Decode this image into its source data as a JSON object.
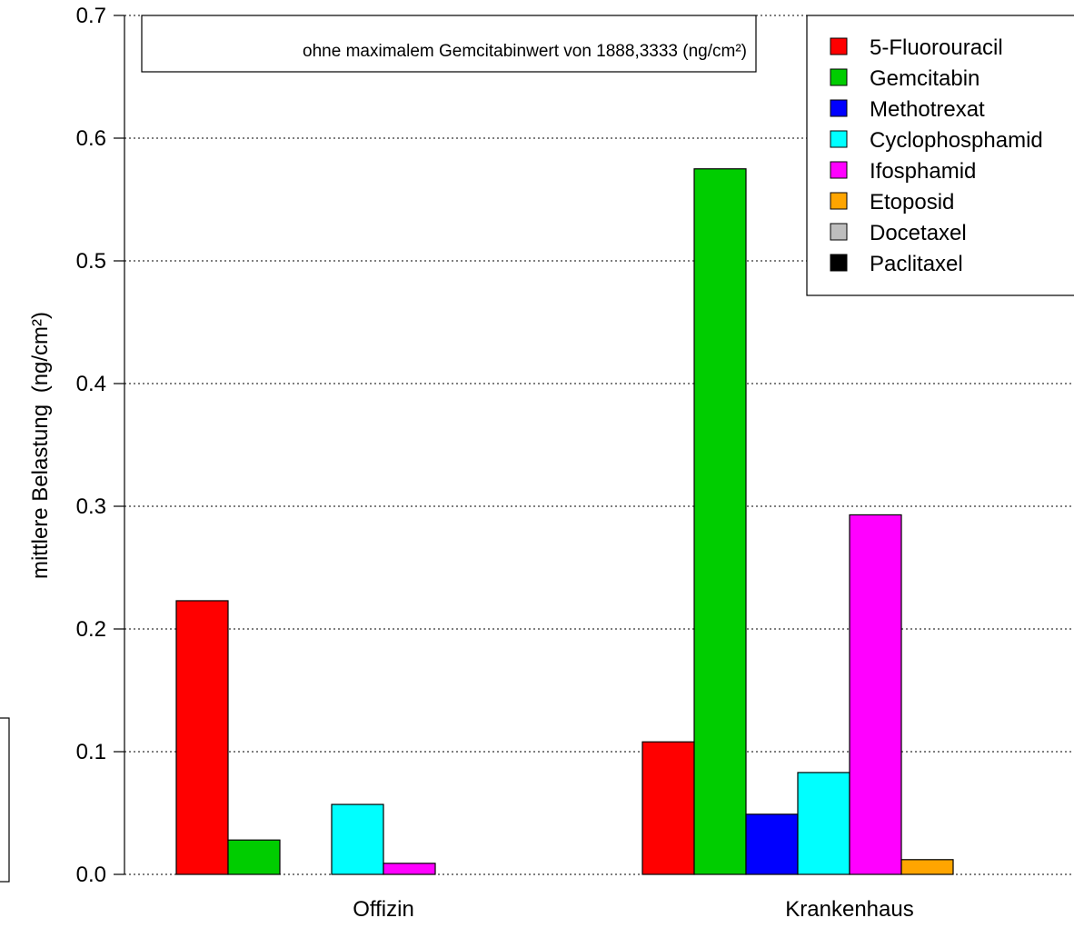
{
  "chart_data": {
    "type": "bar",
    "ylabel": "mittlere Belastung",
    "ylabel_unit": "(ng/cm²)",
    "ylim": [
      0,
      0.7
    ],
    "yticks": [
      "0.0",
      "0.1",
      "0.2",
      "0.3",
      "0.4",
      "0.5",
      "0.6",
      "0.7"
    ],
    "grid": "horizontal dotted",
    "legend_position": "top-right",
    "annotation": "ohne maximalem Gemcitabinwert von 1888,3333 (ng/cm²)",
    "categories": [
      "Offizin",
      "Krankenhaus"
    ],
    "series": [
      {
        "name": "5-Fluorouracil",
        "color": "#ff0000",
        "values": [
          0.223,
          0.108
        ]
      },
      {
        "name": "Gemcitabin",
        "color": "#00cd00",
        "values": [
          0.028,
          0.575
        ]
      },
      {
        "name": "Methotrexat",
        "color": "#0000ff",
        "values": [
          0.0,
          0.049
        ]
      },
      {
        "name": "Cyclophosphamid",
        "color": "#00ffff",
        "values": [
          0.057,
          0.083
        ]
      },
      {
        "name": "Ifosphamid",
        "color": "#ff00ff",
        "values": [
          0.009,
          0.293
        ]
      },
      {
        "name": "Etoposid",
        "color": "#ffa500",
        "values": [
          0.0,
          0.012
        ]
      },
      {
        "name": "Docetaxel",
        "color": "#bebebe",
        "values": [
          0.0,
          0.0
        ]
      },
      {
        "name": "Paclitaxel",
        "color": "#000000",
        "values": [
          0.0,
          0.0
        ]
      }
    ]
  }
}
